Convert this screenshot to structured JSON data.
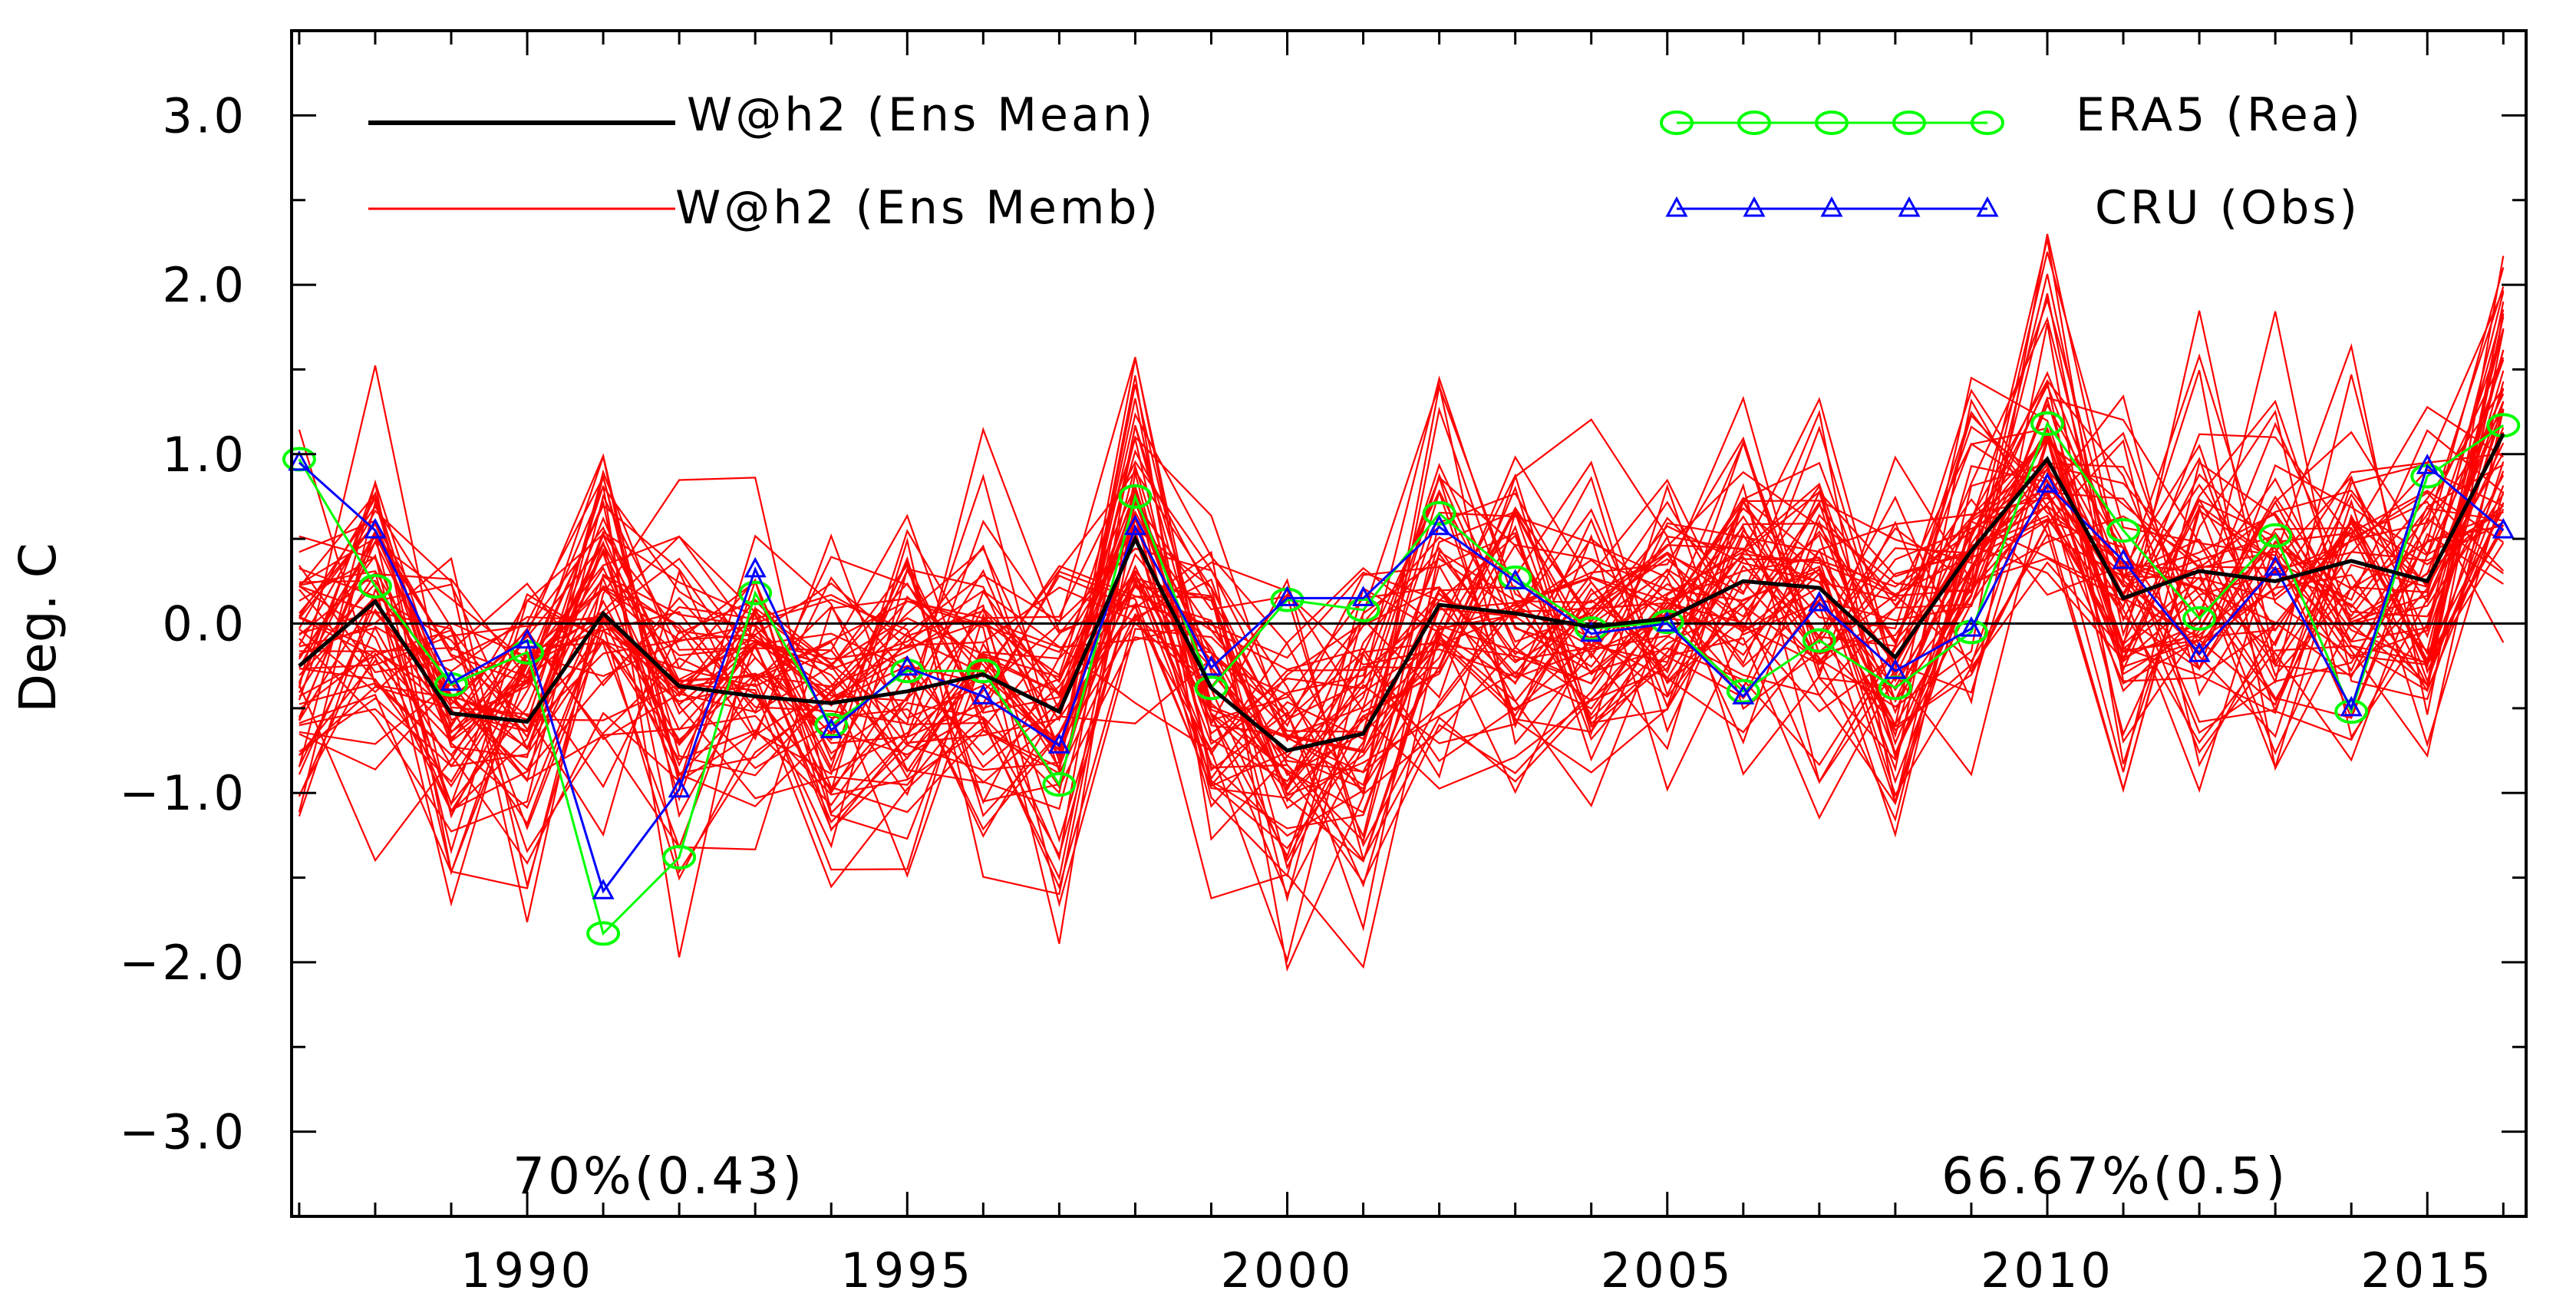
{
  "chart_data": {
    "type": "line",
    "ylabel": "Deg. C",
    "xlim": [
      1986.9,
      2016.3
    ],
    "ylim": [
      -3.5,
      3.5
    ],
    "x_ticks": [
      1990,
      1995,
      2000,
      2005,
      2010,
      2015
    ],
    "x_tick_labels": [
      "1990",
      "1995",
      "2000",
      "2005",
      "2010",
      "2015"
    ],
    "y_ticks": [
      -3,
      -2,
      -1,
      0,
      1,
      2,
      3
    ],
    "y_tick_labels": [
      "−3.0",
      "−2.0",
      "−1.0",
      "0.0",
      "1.0",
      "2.0",
      "3.0"
    ],
    "zero_line": true,
    "grid": false,
    "legend": {
      "position": "top",
      "entries": [
        {
          "label": "W@h2 (Ens Mean)",
          "color": "#000000",
          "marker": "none"
        },
        {
          "label": "W@h2 (Ens Memb)",
          "color": "#ff0000",
          "marker": "none"
        },
        {
          "label": "ERA5 (Rea)",
          "color": "#00ff00",
          "marker": "circle"
        },
        {
          "label": "CRU (Obs)",
          "color": "#0000ff",
          "marker": "triangle"
        }
      ]
    },
    "annotations": [
      {
        "text": "70%(0.43)",
        "position": "bottom-left"
      },
      {
        "text": "66.67%(0.5)",
        "position": "bottom-right"
      }
    ],
    "x": [
      1987,
      1988,
      1989,
      1990,
      1991,
      1992,
      1993,
      1994,
      1995,
      1996,
      1997,
      1998,
      1999,
      2000,
      2001,
      2002,
      2003,
      2004,
      2005,
      2006,
      2007,
      2008,
      2009,
      2010,
      2011,
      2012,
      2013,
      2014,
      2015,
      2016
    ],
    "series": [
      {
        "name": "W@h2 (Ens Mean)",
        "color": "#000000",
        "width": 5,
        "values": [
          -0.25,
          0.13,
          -0.53,
          -0.58,
          0.06,
          -0.37,
          -0.43,
          -0.47,
          -0.4,
          -0.3,
          -0.52,
          0.5,
          -0.38,
          -0.75,
          -0.65,
          0.11,
          0.06,
          -0.02,
          0.03,
          0.25,
          0.21,
          -0.2,
          0.43,
          0.97,
          0.15,
          0.31,
          0.25,
          0.37,
          0.25,
          1.12
        ]
      },
      {
        "name": "ERA5 (Rea)",
        "color": "#00ff00",
        "width": 3,
        "marker": "circle",
        "values": [
          0.97,
          0.22,
          -0.36,
          -0.17,
          -1.83,
          -1.38,
          0.18,
          -0.6,
          -0.28,
          -0.28,
          -0.95,
          0.75,
          -0.38,
          0.14,
          0.08,
          0.65,
          0.27,
          -0.03,
          0.01,
          -0.4,
          -0.1,
          -0.38,
          -0.05,
          1.18,
          0.55,
          0.03,
          0.52,
          -0.52,
          0.87,
          1.17
        ]
      },
      {
        "name": "CRU (Obs)",
        "color": "#0000ff",
        "width": 3,
        "marker": "triangle",
        "values": [
          0.95,
          0.55,
          -0.35,
          -0.1,
          -1.58,
          -0.98,
          0.32,
          -0.63,
          -0.26,
          -0.43,
          -0.72,
          0.57,
          -0.26,
          0.15,
          0.15,
          0.57,
          0.25,
          -0.06,
          0.0,
          -0.43,
          0.12,
          -0.28,
          -0.03,
          0.82,
          0.37,
          -0.18,
          0.33,
          -0.5,
          0.93,
          0.55
        ]
      }
    ],
    "members": {
      "label": "W@h2 (Ens Memb)",
      "color": "#ff0000",
      "count": 60,
      "approx_range": [
        -2.7,
        2.3
      ]
    }
  }
}
